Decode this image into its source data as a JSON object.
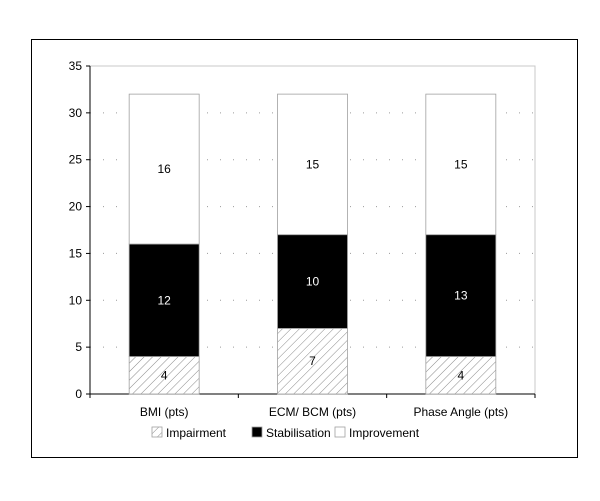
{
  "chart_data": {
    "type": "bar",
    "stacked": true,
    "title": "",
    "xlabel": "",
    "ylabel": "",
    "categories": [
      "BMI (pts)",
      "ECM/ BCM (pts)",
      "Phase Angle (pts)"
    ],
    "series": [
      {
        "name": "Impairment",
        "values": [
          4,
          7,
          4
        ],
        "fill": "hatch",
        "label_color": "#000000"
      },
      {
        "name": "Stabilisation",
        "values": [
          12,
          10,
          13
        ],
        "fill": "#000000",
        "label_color": "#ffffff"
      },
      {
        "name": "Improvement",
        "values": [
          16,
          15,
          15
        ],
        "fill": "#ffffff",
        "label_color": "#000000"
      }
    ],
    "ylim": [
      0,
      35
    ],
    "yticks": [
      0,
      5,
      10,
      15,
      20,
      25,
      30,
      35
    ],
    "ytick_labels": [
      "0",
      "5",
      "10",
      "15",
      "20",
      "25",
      "30",
      "35"
    ],
    "grid": "dotted-horizontal",
    "legend_position": "bottom"
  }
}
